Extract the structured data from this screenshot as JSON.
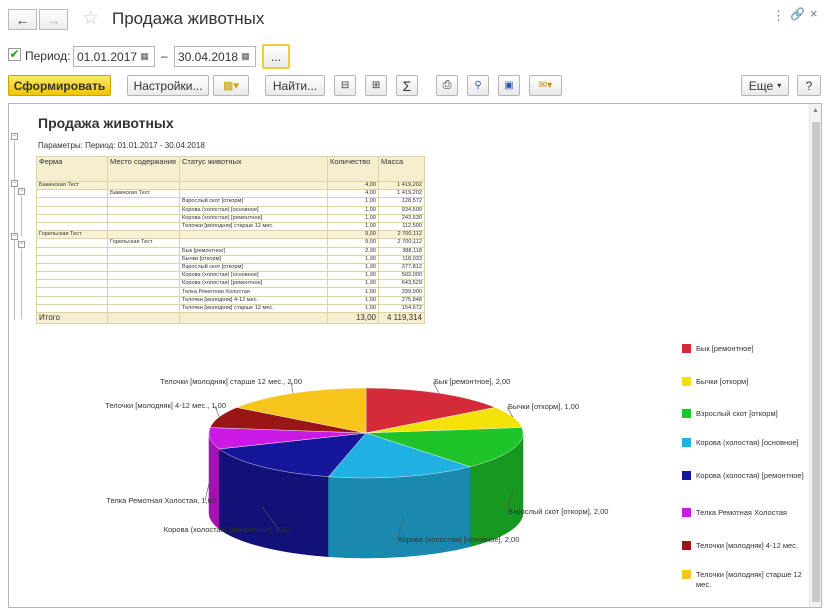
{
  "window": {
    "title": "Продажа животных"
  },
  "period": {
    "label": "Период:",
    "from": "01.01.2017",
    "dash": "–",
    "to": "30.04.2018",
    "more": "..."
  },
  "toolbar": {
    "generate": "Сформировать",
    "settings": "Настройки...",
    "find": "Найти...",
    "sum": "Σ",
    "more": "Еще",
    "help": "?"
  },
  "report": {
    "title": "Продажа животных",
    "params": "Параметры:  Период: 01.01.2017 - 30.04.2018",
    "columns": [
      "Ферма",
      "Место содержания",
      "Статус животных",
      "Количество",
      "Масса"
    ],
    "rows": [
      {
        "farm": "Бакинская Тест",
        "place": "",
        "status": "",
        "qty": "4,00",
        "mass": "1 419,202",
        "group": true
      },
      {
        "farm": "",
        "place": "Бакинская Тест",
        "status": "",
        "qty": "4,00",
        "mass": "1 419,202",
        "group": false
      },
      {
        "farm": "",
        "place": "",
        "status": "Взрослый скот [откорм]",
        "qty": "1,00",
        "mass": "128,572",
        "group": false
      },
      {
        "farm": "",
        "place": "",
        "status": "Корова (холостая) [основное]",
        "qty": "1,00",
        "mass": "934,500",
        "group": false
      },
      {
        "farm": "",
        "place": "",
        "status": "Корова (холостая) [ремонтное]",
        "qty": "1,00",
        "mass": "243,630",
        "group": false
      },
      {
        "farm": "",
        "place": "",
        "status": "Телочки [молодняк] старше 12 мес.",
        "qty": "1,00",
        "mass": "112,500",
        "group": false
      },
      {
        "farm": "Горельская Тест",
        "place": "",
        "status": "",
        "qty": "9,00",
        "mass": "2 700,112",
        "group": true
      },
      {
        "farm": "",
        "place": "Горельская Тест",
        "status": "",
        "qty": "9,00",
        "mass": "2 700,112",
        "group": false
      },
      {
        "farm": "",
        "place": "",
        "status": "Бык [ремонтное]",
        "qty": "2,00",
        "mass": "388,118",
        "group": false
      },
      {
        "farm": "",
        "place": "",
        "status": "Бычки [откорм]",
        "qty": "1,00",
        "mass": "118,033",
        "group": false
      },
      {
        "farm": "",
        "place": "",
        "status": "Взрослый скот [откорм]",
        "qty": "1,00",
        "mass": "377,812",
        "group": false
      },
      {
        "farm": "",
        "place": "",
        "status": "Корова (холостая) [основное]",
        "qty": "1,00",
        "mass": "502,000",
        "group": false
      },
      {
        "farm": "",
        "place": "",
        "status": "Корова (холостая) [ремонтное]",
        "qty": "1,00",
        "mass": "643,529",
        "group": false
      },
      {
        "farm": "",
        "place": "",
        "status": "Телка Ремотная Холостая",
        "qty": "1,00",
        "mass": "339,900",
        "group": false
      },
      {
        "farm": "",
        "place": "",
        "status": "Телочки [молодняк] 4-12 мес.",
        "qty": "1,00",
        "mass": "275,848",
        "group": false
      },
      {
        "farm": "",
        "place": "",
        "status": "Телочки [молодняк] старше 12 мес.",
        "qty": "1,00",
        "mass": "154,672",
        "group": false
      }
    ],
    "total": {
      "label": "Итого",
      "qty": "13,00",
      "mass": "4 119,314"
    }
  },
  "chart_data": {
    "type": "pie",
    "title": "",
    "series": [
      {
        "name": "Бык [ремонтное]",
        "value": 2.0,
        "color": "#d42a3a",
        "label": "Бык [ремонтное], 2,00"
      },
      {
        "name": "Бычки [откорм]",
        "value": 1.0,
        "color": "#f5e10a",
        "label": "Бычки [откорм], 1,00"
      },
      {
        "name": "Взрослый скот [откорм]",
        "value": 2.0,
        "color": "#1ec42a",
        "label": "Взрослый скот [откорм], 2,00"
      },
      {
        "name": "Корова (холостая) [основное]",
        "value": 2.0,
        "color": "#20b0e2",
        "label": "Корова (холостая) [основное], 2,00"
      },
      {
        "name": "Корова (холостая) [ремонтное]",
        "value": 2.0,
        "color": "#16169a",
        "label": "Корова (холостая) [ремонтное], 2,00"
      },
      {
        "name": "Телка Ремотная Холостая",
        "value": 1.0,
        "color": "#cc1ae6",
        "label": "Телка Ремотная Холостая, 1,00"
      },
      {
        "name": "Телочки [молодняк] 4-12 мес.",
        "value": 1.0,
        "color": "#9a1616",
        "label": "Телочки [молодняк] 4-12 мес., 1,00"
      },
      {
        "name": "Телочки [молодняк] старше 12 мес.",
        "value": 2.0,
        "color": "#f7c51c",
        "label": "Телочки [молодняк] старше 12 мес., 2,00"
      }
    ],
    "legend": "right"
  }
}
